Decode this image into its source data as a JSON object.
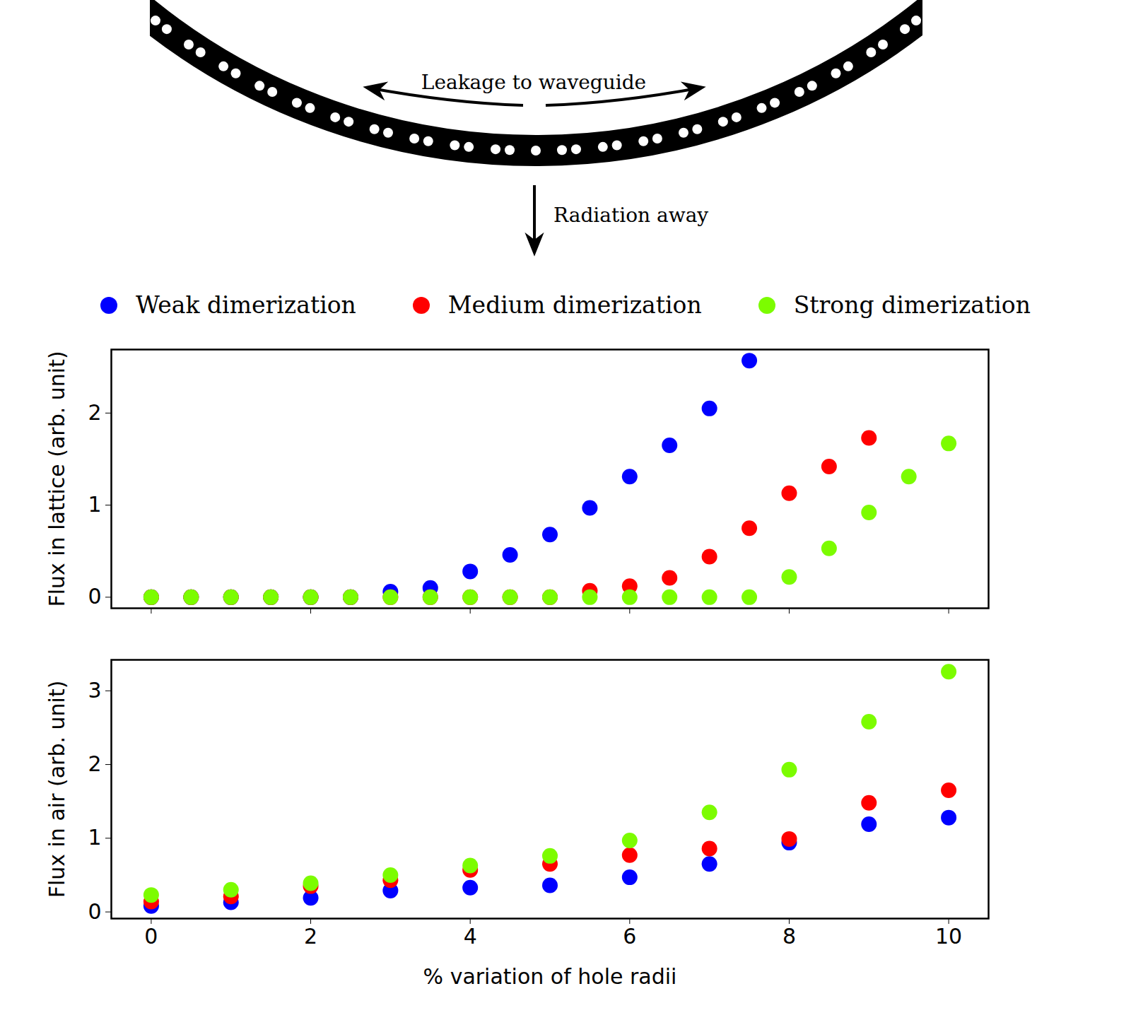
{
  "diagram": {
    "labels": {
      "leakage": "Leakage to waveguide",
      "radiation": "Radiation away"
    }
  },
  "chart_data": [
    {
      "type": "scatter",
      "legend": "top",
      "y_label": "Flux in lattice (arb. unit)",
      "xlim": [
        -0.5,
        10.5
      ],
      "xticks": [
        0,
        2,
        4,
        6,
        8,
        10
      ],
      "ylim": [
        -0.12,
        2.69
      ],
      "yticks": [
        0,
        1,
        2
      ],
      "tick_labels": "y",
      "series": [
        {
          "name": "Weak dimerization",
          "color": "#0000ff",
          "marker": "circle",
          "x": [
            0,
            0.5,
            1,
            1.5,
            2,
            2.5,
            3,
            3.5,
            4,
            4.5,
            5,
            5.5,
            6,
            6.5,
            7,
            7.5
          ],
          "values": [
            0,
            0,
            0,
            0,
            0,
            0,
            0.06,
            0.1,
            0.28,
            0.46,
            0.68,
            0.97,
            1.31,
            1.65,
            2.05,
            2.57
          ]
        },
        {
          "name": "Medium dimerization",
          "color": "#ff0000",
          "marker": "circle",
          "x": [
            0,
            0.5,
            1,
            1.5,
            2,
            2.5,
            3,
            3.5,
            4,
            4.5,
            5,
            5.5,
            6,
            6.5,
            7,
            7.5,
            8,
            8.5,
            9
          ],
          "values": [
            0,
            0,
            0,
            0,
            0,
            0,
            0,
            0,
            0,
            0,
            0,
            0.07,
            0.12,
            0.21,
            0.44,
            0.75,
            1.13,
            1.42,
            1.73
          ]
        },
        {
          "name": "Strong dimerization",
          "color": "#7cfc00",
          "marker": "circle",
          "x": [
            0,
            0.5,
            1,
            1.5,
            2,
            2.5,
            3,
            3.5,
            4,
            4.5,
            5,
            5.5,
            6,
            6.5,
            7,
            7.5,
            8,
            8.5,
            9,
            9.5,
            10
          ],
          "values": [
            0,
            0,
            0,
            0,
            0,
            0,
            0,
            0,
            0,
            0,
            0,
            0,
            0,
            0,
            0,
            0,
            0.22,
            0.53,
            0.92,
            1.31,
            1.67
          ]
        }
      ]
    },
    {
      "type": "scatter",
      "x_label": "% variation of hole radii",
      "y_label": "Flux in air (arb. unit)",
      "xlim": [
        -0.5,
        10.5
      ],
      "xticks": [
        0,
        2,
        4,
        6,
        8,
        10
      ],
      "ylim": [
        -0.09,
        3.42
      ],
      "yticks": [
        0,
        1,
        2,
        3
      ],
      "series": [
        {
          "name": "Weak dimerization",
          "color": "#0000ff",
          "marker": "circle",
          "x": [
            0,
            1,
            2,
            3,
            4,
            5,
            6,
            7,
            8,
            9,
            10
          ],
          "values": [
            0.08,
            0.13,
            0.19,
            0.29,
            0.33,
            0.36,
            0.47,
            0.65,
            0.94,
            1.19,
            1.28
          ]
        },
        {
          "name": "Medium dimerization",
          "color": "#ff0000",
          "marker": "circle",
          "x": [
            0,
            1,
            2,
            3,
            4,
            5,
            6,
            7,
            8,
            9,
            10
          ],
          "values": [
            0.14,
            0.21,
            0.35,
            0.43,
            0.57,
            0.65,
            0.77,
            0.86,
            0.99,
            1.48,
            1.65
          ]
        },
        {
          "name": "Strong dimerization",
          "color": "#7cfc00",
          "marker": "circle",
          "x": [
            0,
            1,
            2,
            3,
            4,
            5,
            6,
            7,
            8,
            9,
            10
          ],
          "values": [
            0.23,
            0.3,
            0.39,
            0.5,
            0.63,
            0.76,
            0.97,
            1.35,
            1.93,
            2.58,
            3.26
          ]
        }
      ]
    }
  ]
}
